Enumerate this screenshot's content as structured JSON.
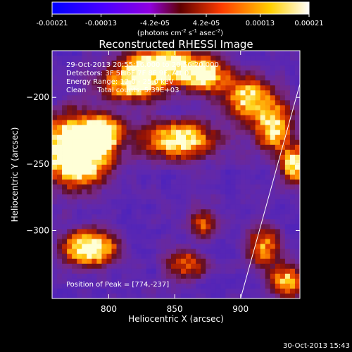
{
  "colorbar": {
    "ticks": [
      "-0.00021",
      "-0.00013",
      "-4.2e-05",
      "4.2e-05",
      "0.00013",
      "0.00021"
    ],
    "tick_values": [
      -0.00021,
      -0.00013,
      -4.2e-05,
      4.2e-05,
      0.00013,
      0.00021
    ],
    "unit_main": "(photons cm",
    "unit_exp1": "-2",
    "unit_mid": " s",
    "unit_exp2": "-1",
    "unit_tail": " asec",
    "unit_exp3": "-2",
    "unit_close": ")",
    "colors": [
      "#0000ff",
      "#7a00ff",
      "#7a0000",
      "#ff4a00",
      "#ffe000",
      "#ffffff"
    ]
  },
  "chart_data": {
    "type": "heatmap",
    "title": "Reconstructed RHESSI Image",
    "xlabel": "Heliocentric X (arcsec)",
    "ylabel": "Heliocentric Y (arcsec)",
    "xlim": [
      757,
      945
    ],
    "ylim": [
      -351,
      -165
    ],
    "x_ticks": [
      800,
      850,
      900
    ],
    "y_ticks": [
      -200,
      -250,
      -300
    ],
    "x_tick_labels": [
      "800",
      "850",
      "900"
    ],
    "y_tick_labels": [
      "-200",
      "-250",
      "-300"
    ],
    "info_lines": [
      "29-Oct-2013 20:55:16.000 to 20:56:20.000",
      "Detectors: 3F 5F 6F 7F 8F 9F, Att 0",
      "Energy Range: 12.0 - 25.0 keV",
      "Clean     Total counts: 5.39E+03"
    ],
    "peak_label": "Position of Peak = [774,-237]",
    "peak": [
      774,
      -237
    ],
    "limb_line": [
      [
        900,
        -351
      ],
      [
        945,
        -190
      ]
    ],
    "hot_spots": [
      {
        "x": 776,
        "y": -240,
        "sx": 15,
        "sy": 15,
        "amp": 1.5
      },
      {
        "x": 795,
        "y": -227,
        "sx": 9,
        "sy": 8,
        "amp": 0.8
      },
      {
        "x": 786,
        "y": -313,
        "sx": 12,
        "sy": 8,
        "amp": 1.05
      },
      {
        "x": 820,
        "y": -190,
        "sx": 16,
        "sy": 8,
        "amp": 0.8
      },
      {
        "x": 840,
        "y": -175,
        "sx": 18,
        "sy": 8,
        "amp": 0.9
      },
      {
        "x": 872,
        "y": -183,
        "sx": 12,
        "sy": 8,
        "amp": 0.8
      },
      {
        "x": 853,
        "y": -232,
        "sx": 18,
        "sy": 9,
        "amp": 0.75
      },
      {
        "x": 905,
        "y": -200,
        "sx": 12,
        "sy": 10,
        "amp": 0.7
      },
      {
        "x": 925,
        "y": -222,
        "sx": 9,
        "sy": 12,
        "amp": 0.75
      },
      {
        "x": 942,
        "y": -250,
        "sx": 7,
        "sy": 9,
        "amp": 0.85
      },
      {
        "x": 918,
        "y": -312,
        "sx": 8,
        "sy": 10,
        "amp": 0.55
      },
      {
        "x": 935,
        "y": -338,
        "sx": 8,
        "sy": 8,
        "amp": 0.6
      },
      {
        "x": 858,
        "y": -325,
        "sx": 10,
        "sy": 8,
        "amp": 0.4
      },
      {
        "x": 872,
        "y": -295,
        "sx": 7,
        "sy": 7,
        "amp": 0.4
      }
    ]
  },
  "footer": {
    "timestamp": "30-Oct-2013 15:43"
  }
}
